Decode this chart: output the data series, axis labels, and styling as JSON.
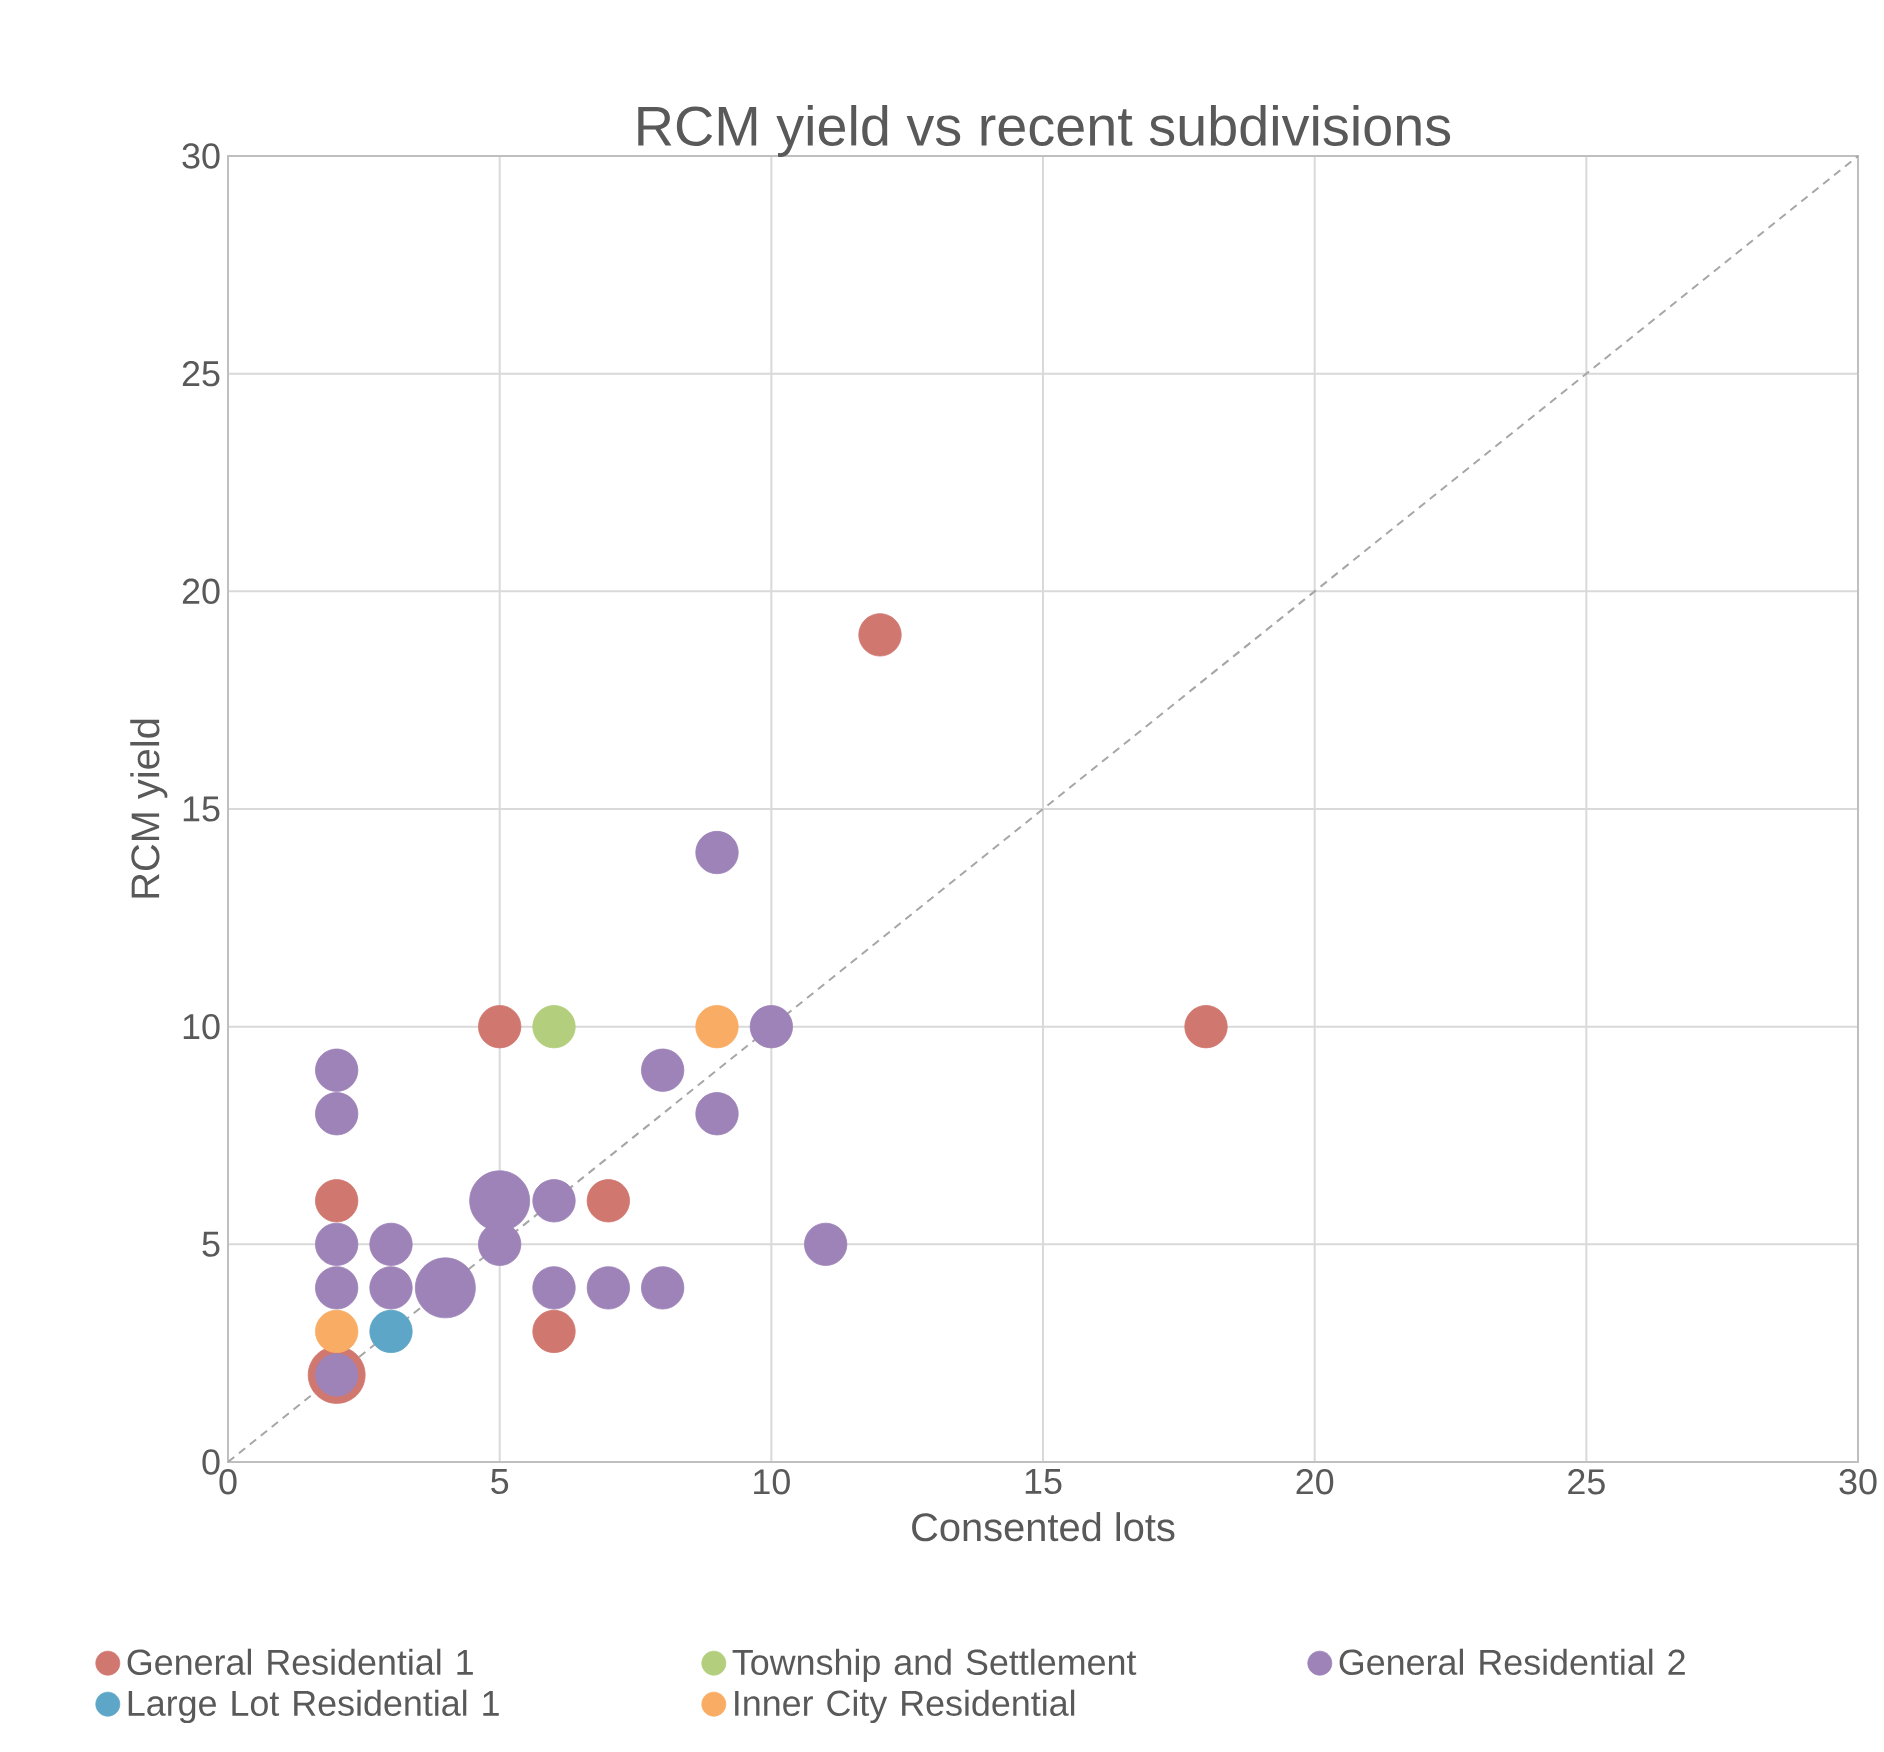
{
  "chart_data": {
    "type": "bubble",
    "title": "RCM yield vs recent subdivisions",
    "xlabel": "Consented lots",
    "ylabel": "RCM yield",
    "xlim": [
      0,
      30
    ],
    "ylim": [
      0,
      30
    ],
    "xticks": [
      0,
      5,
      10,
      15,
      20,
      25,
      30
    ],
    "yticks": [
      0,
      5,
      10,
      15,
      20,
      25,
      30
    ],
    "grid": true,
    "legend": "bottom",
    "series": [
      {
        "name": "General Residential 1",
        "color": "#d0776f",
        "x": [
          12,
          18,
          5,
          2,
          7,
          6,
          2
        ],
        "values": [
          19,
          10,
          10,
          6,
          6,
          3,
          2
        ],
        "sizes": [
          0.5,
          0.5,
          0.5,
          0.5,
          0.5,
          0.5,
          0.9
        ]
      },
      {
        "name": "Township and Settlement",
        "color": "#b3cf7d",
        "x": [
          6
        ],
        "values": [
          10
        ],
        "sizes": [
          0.5
        ]
      },
      {
        "name": "General Residential 2",
        "color": "#9d83b7",
        "x": [
          9,
          2,
          8,
          2,
          9,
          10,
          5,
          6,
          2,
          3,
          5,
          11,
          2,
          3,
          4,
          6,
          7,
          8,
          2
        ],
        "values": [
          14,
          9,
          9,
          8,
          8,
          10,
          6,
          6,
          5,
          5,
          5,
          5,
          4,
          4,
          4,
          4,
          4,
          4,
          2
        ],
        "sizes": [
          0.5,
          0.5,
          0.5,
          0.5,
          0.5,
          0.5,
          1,
          0.5,
          0.5,
          0.5,
          0.5,
          0.5,
          0.5,
          0.5,
          1,
          0.5,
          0.5,
          0.5,
          0.5
        ]
      },
      {
        "name": "Large Lot Residential 1",
        "color": "#5ea6c7",
        "x": [
          3
        ],
        "values": [
          3
        ],
        "sizes": [
          0.5
        ]
      },
      {
        "name": "Inner City Residential",
        "color": "#f9ac64",
        "x": [
          2,
          9
        ],
        "values": [
          3,
          10
        ],
        "sizes": [
          0.5,
          0.5
        ]
      },
      {
        "type": "line",
        "color": "#a6a6a6",
        "line_style": "dashed",
        "marker": "none",
        "x": [
          0,
          30
        ],
        "values": [
          0,
          30
        ]
      }
    ]
  }
}
